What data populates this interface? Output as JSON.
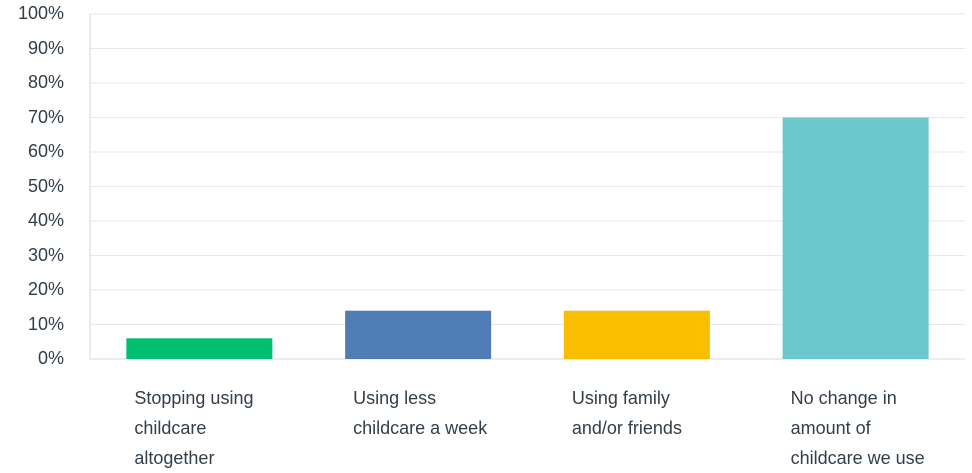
{
  "chart_data": {
    "type": "bar",
    "categories": [
      "Stopping using\nchildcare\naltogether",
      "Using less\nchildcare a week",
      "Using family\nand/or friends",
      "No change in\namount of\nchildcare we use"
    ],
    "values": [
      6,
      14,
      14,
      70
    ],
    "colors": [
      "#00bf6f",
      "#507cb6",
      "#f9be00",
      "#6bc8cd"
    ],
    "ylim": [
      0,
      100
    ],
    "yticks": [
      "0%",
      "10%",
      "20%",
      "30%",
      "40%",
      "50%",
      "60%",
      "70%",
      "80%",
      "90%",
      "100%"
    ],
    "grid": true,
    "title": "",
    "xlabel": "",
    "ylabel": ""
  }
}
